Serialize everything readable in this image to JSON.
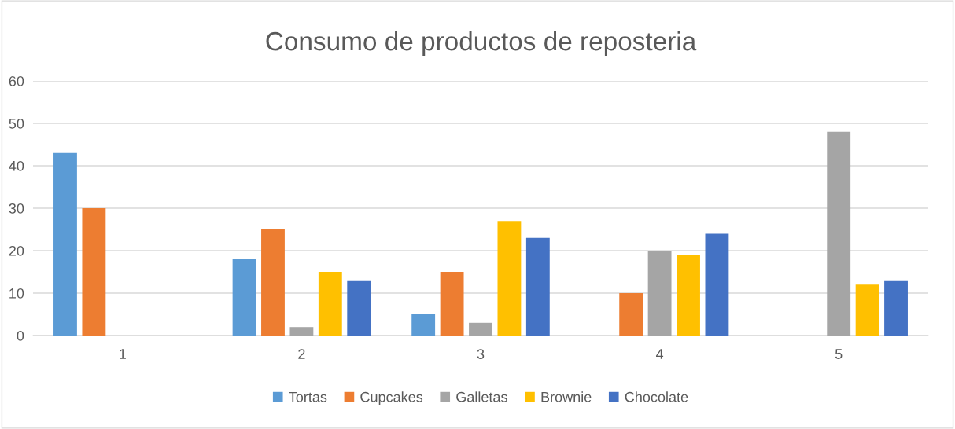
{
  "chart_data": {
    "type": "bar",
    "title": "Consumo de productos de reposteria",
    "categories": [
      "1",
      "2",
      "3",
      "4",
      "5"
    ],
    "series": [
      {
        "name": "Tortas",
        "color": "#5b9bd5",
        "values": [
          43,
          18,
          5,
          0,
          0
        ]
      },
      {
        "name": "Cupcakes",
        "color": "#ed7d31",
        "values": [
          30,
          25,
          15,
          10,
          0
        ]
      },
      {
        "name": "Galletas",
        "color": "#a5a5a5",
        "values": [
          0,
          2,
          3,
          20,
          48
        ]
      },
      {
        "name": "Brownie",
        "color": "#ffc000",
        "values": [
          0,
          15,
          27,
          19,
          12
        ]
      },
      {
        "name": "Chocolate",
        "color": "#4472c4",
        "values": [
          0,
          13,
          23,
          24,
          13
        ]
      }
    ],
    "ylim": [
      0,
      60
    ],
    "yticks": [
      0,
      10,
      20,
      30,
      40,
      50,
      60
    ],
    "grid": "y",
    "legend": "bottom"
  }
}
